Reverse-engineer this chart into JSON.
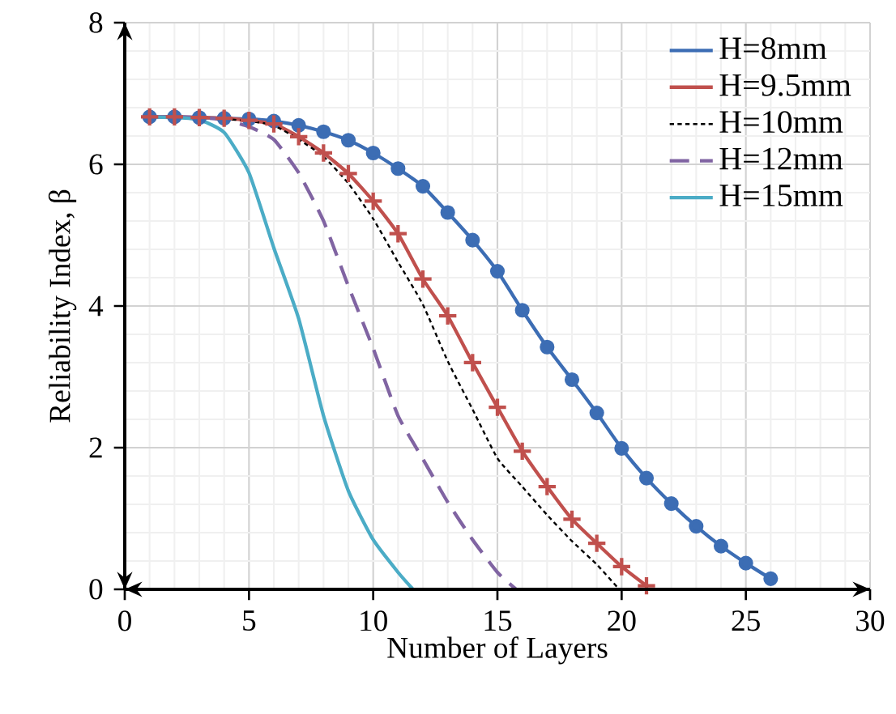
{
  "chart_data": {
    "type": "line",
    "xlabel": "Number of Layers",
    "ylabel": "Reliability Index, β",
    "xlim": [
      0,
      30
    ],
    "ylim": [
      0,
      8
    ],
    "xticks": [
      0,
      5,
      10,
      15,
      20,
      25,
      30
    ],
    "yticks": [
      0,
      2,
      4,
      6,
      8
    ],
    "grid": true,
    "legend": "top right",
    "series": [
      {
        "name": "H=8mm",
        "color": "#3c6db4",
        "marker": "circle",
        "line_style": "solid",
        "x": [
          1,
          2,
          3,
          4,
          5,
          6,
          7,
          8,
          9,
          10,
          11,
          12,
          13,
          14,
          15,
          16,
          17,
          18,
          19,
          20,
          21,
          22,
          23,
          24,
          25,
          26
        ],
        "values": [
          6.67,
          6.67,
          6.66,
          6.65,
          6.64,
          6.61,
          6.55,
          6.46,
          6.34,
          6.16,
          5.94,
          5.69,
          5.32,
          4.93,
          4.49,
          3.94,
          3.42,
          2.96,
          2.49,
          1.99,
          1.57,
          1.21,
          0.89,
          0.61,
          0.37,
          0.15
        ]
      },
      {
        "name": "H=9.5mm",
        "color": "#c0504d",
        "marker": "cross",
        "line_style": "solid",
        "x": [
          1,
          2,
          3,
          4,
          5,
          6,
          7,
          8,
          9,
          10,
          11,
          12,
          13,
          14,
          15,
          16,
          17,
          18,
          19,
          20,
          21
        ],
        "values": [
          6.67,
          6.67,
          6.66,
          6.65,
          6.62,
          6.57,
          6.39,
          6.16,
          5.87,
          5.48,
          5.02,
          4.38,
          3.86,
          3.2,
          2.57,
          1.95,
          1.45,
          0.99,
          0.65,
          0.32,
          0.05
        ]
      },
      {
        "name": "H=10mm",
        "color": "#000000",
        "marker": "none",
        "line_style": "dotted",
        "x": [
          4,
          5,
          6,
          7,
          8,
          9,
          10,
          11,
          12,
          13,
          14,
          15,
          16,
          17,
          18,
          19,
          19.9
        ],
        "values": [
          6.64,
          6.61,
          6.55,
          6.35,
          6.11,
          5.73,
          5.23,
          4.62,
          4.02,
          3.22,
          2.54,
          1.85,
          1.45,
          1.05,
          0.68,
          0.35,
          0
        ]
      },
      {
        "name": "H=12mm",
        "color": "#8064a2",
        "marker": "none",
        "line_style": "dashed",
        "x": [
          1,
          2,
          3,
          4,
          5,
          6,
          7,
          8,
          9,
          10,
          11,
          12,
          13,
          14,
          15,
          15.75
        ],
        "values": [
          6.67,
          6.67,
          6.66,
          6.63,
          6.53,
          6.35,
          5.88,
          5.2,
          4.28,
          3.4,
          2.45,
          1.84,
          1.23,
          0.7,
          0.24,
          0
        ]
      },
      {
        "name": "H=15mm",
        "color": "#4bacc6",
        "marker": "none",
        "line_style": "solid",
        "x": [
          1,
          2,
          3,
          4,
          5,
          6,
          7,
          8,
          9,
          10,
          11,
          11.6
        ],
        "values": [
          6.67,
          6.66,
          6.63,
          6.45,
          5.88,
          4.82,
          3.82,
          2.45,
          1.39,
          0.7,
          0.24,
          0
        ]
      }
    ]
  }
}
